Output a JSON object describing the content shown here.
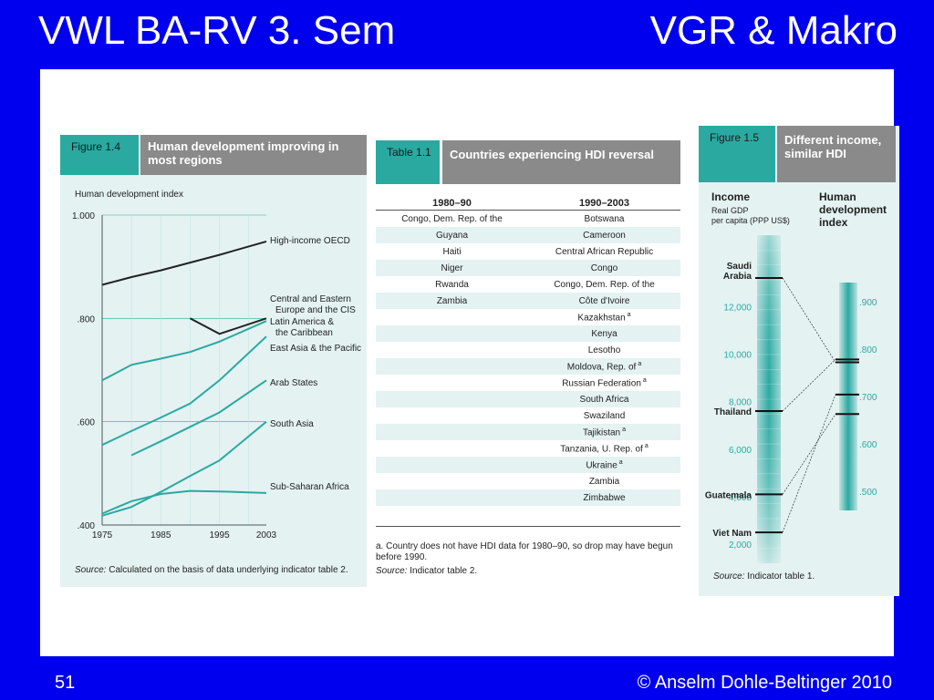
{
  "slide": {
    "title_left": "VWL BA-RV 3. Sem",
    "title_right": "VGR & Makro",
    "page_number": "51",
    "copyright": "© Anselm Dohle-Beltinger 2010",
    "colors": {
      "background": "#0000ee",
      "accent_teal": "#2aa9a1",
      "header_grey": "#8a8a8a"
    }
  },
  "figure14": {
    "num": "Figure 1.4",
    "title": "Human development improving in most regions",
    "source_label": "Source:",
    "source_text": "Calculated on the basis of data underlying indicator table 2."
  },
  "table11": {
    "num": "Table 1.1",
    "title": "Countries experiencing HDI reversal",
    "col1": "1980–90",
    "col2": "1990–2003",
    "rows": [
      {
        "c1": "Congo, Dem. Rep. of the",
        "c2": "Botswana",
        "note": ""
      },
      {
        "c1": "Guyana",
        "c2": "Cameroon",
        "note": ""
      },
      {
        "c1": "Haiti",
        "c2": "Central African Republic",
        "note": ""
      },
      {
        "c1": "Niger",
        "c2": "Congo",
        "note": ""
      },
      {
        "c1": "Rwanda",
        "c2": "Congo, Dem. Rep. of the",
        "note": ""
      },
      {
        "c1": "Zambia",
        "c2": "Côte d'Ivoire",
        "note": ""
      },
      {
        "c1": "",
        "c2": "Kazakhstan",
        "note": "a"
      },
      {
        "c1": "",
        "c2": "Kenya",
        "note": ""
      },
      {
        "c1": "",
        "c2": "Lesotho",
        "note": ""
      },
      {
        "c1": "",
        "c2": "Moldova, Rep. of",
        "note": "a"
      },
      {
        "c1": "",
        "c2": "Russian Federation",
        "note": "a"
      },
      {
        "c1": "",
        "c2": "South Africa",
        "note": ""
      },
      {
        "c1": "",
        "c2": "Swaziland",
        "note": ""
      },
      {
        "c1": "",
        "c2": "Tajikistan",
        "note": "a"
      },
      {
        "c1": "",
        "c2": "Tanzania, U. Rep. of",
        "note": "a"
      },
      {
        "c1": "",
        "c2": "Ukraine",
        "note": "a"
      },
      {
        "c1": "",
        "c2": "Zambia",
        "note": ""
      },
      {
        "c1": "",
        "c2": "Zimbabwe",
        "note": ""
      }
    ],
    "footnote": "a. Country does not have HDI data for 1980–90, so drop may have begun before 1990.",
    "source_label": "Source:",
    "source_text": "Indicator table 2."
  },
  "figure15": {
    "num": "Figure 1.5",
    "title": "Different income, similar HDI",
    "source_label": "Source:",
    "source_text": "Indicator table 1."
  },
  "chart_data": [
    {
      "type": "line",
      "title": "Human development improving in most regions",
      "ylabel": "Human development index",
      "xlabel": "",
      "x": [
        1975,
        1985,
        1995,
        2003
      ],
      "x_tick_labels": [
        "1975",
        "1985",
        "1995",
        "2003"
      ],
      "ylim": [
        0.4,
        1.0
      ],
      "y_ticks": [
        1.0,
        0.8,
        0.6,
        0.4
      ],
      "y_tick_labels": [
        "1.000",
        ".800",
        ".600",
        ".400"
      ],
      "grid": true,
      "series": [
        {
          "name": "High-income OECD",
          "color": "#222222",
          "points": [
            [
              1975,
              0.865
            ],
            [
              1980,
              0.88
            ],
            [
              1985,
              0.893
            ],
            [
              1990,
              0.908
            ],
            [
              1995,
              0.923
            ],
            [
              2003,
              0.949
            ]
          ]
        },
        {
          "name": "Central and Eastern Europe and the CIS",
          "color": "#222222",
          "points": [
            [
              1990,
              0.8
            ],
            [
              1995,
              0.77
            ],
            [
              2003,
              0.8
            ]
          ]
        },
        {
          "name": "Latin America & the Caribbean",
          "color": "#2aa9a1",
          "points": [
            [
              1975,
              0.68
            ],
            [
              1980,
              0.71
            ],
            [
              1985,
              0.722
            ],
            [
              1990,
              0.735
            ],
            [
              1995,
              0.755
            ],
            [
              2003,
              0.795
            ]
          ]
        },
        {
          "name": "East Asia & the Pacific",
          "color": "#2aa9a1",
          "points": [
            [
              1975,
              0.555
            ],
            [
              1980,
              0.582
            ],
            [
              1985,
              0.608
            ],
            [
              1990,
              0.635
            ],
            [
              1995,
              0.68
            ],
            [
              2003,
              0.765
            ]
          ]
        },
        {
          "name": "Arab States",
          "color": "#2aa9a1",
          "points": [
            [
              1980,
              0.535
            ],
            [
              1985,
              0.562
            ],
            [
              1990,
              0.59
            ],
            [
              1995,
              0.618
            ],
            [
              2003,
              0.68
            ]
          ]
        },
        {
          "name": "South Asia",
          "color": "#2aa9a1",
          "points": [
            [
              1975,
              0.418
            ],
            [
              1980,
              0.435
            ],
            [
              1985,
              0.464
            ],
            [
              1990,
              0.495
            ],
            [
              1995,
              0.525
            ],
            [
              2003,
              0.6
            ]
          ]
        },
        {
          "name": "Sub-Saharan Africa",
          "color": "#2aa9a1",
          "points": [
            [
              1975,
              0.422
            ],
            [
              1980,
              0.446
            ],
            [
              1985,
              0.46
            ],
            [
              1990,
              0.466
            ],
            [
              1995,
              0.465
            ],
            [
              2003,
              0.462
            ]
          ]
        }
      ]
    },
    {
      "type": "diagram",
      "title": "Different income, similar HDI",
      "income_axis": {
        "label": "Income",
        "sublabel": "Real GDP per capita (PPP US$)",
        "ticks": [
          2000,
          4000,
          6000,
          8000,
          10000,
          12000
        ],
        "tick_labels": [
          "2,000",
          "4,000",
          "6,000",
          "8,000",
          "10,000",
          "12,000"
        ],
        "range": [
          1200,
          15000
        ]
      },
      "hdi_axis": {
        "label": "Human development index",
        "ticks": [
          0.5,
          0.6,
          0.7,
          0.8,
          0.9
        ],
        "tick_labels": [
          ".500",
          ".600",
          ".700",
          ".800",
          ".900"
        ],
        "range": [
          0.46,
          0.94
        ]
      },
      "countries": [
        {
          "name": "Saudi Arabia",
          "income": 13200,
          "hdi": 0.772
        },
        {
          "name": "Thailand",
          "income": 7600,
          "hdi": 0.778
        },
        {
          "name": "Guatemala",
          "income": 4100,
          "hdi": 0.663
        },
        {
          "name": "Viet Nam",
          "income": 2500,
          "hdi": 0.704
        }
      ]
    }
  ]
}
